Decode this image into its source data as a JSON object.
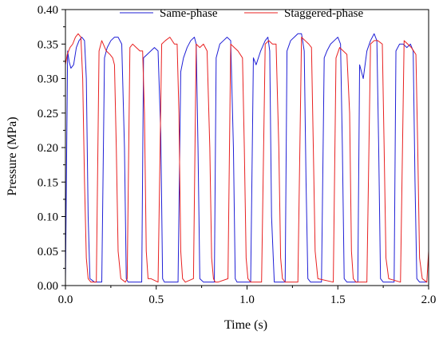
{
  "chart_data": {
    "type": "line",
    "title": "",
    "xlabel": "Time (s)",
    "ylabel": "Pressure (MPa)",
    "xlim": [
      0.0,
      2.0
    ],
    "ylim": [
      0.0,
      0.4
    ],
    "xticks": [
      0.0,
      0.5,
      1.0,
      1.5,
      2.0
    ],
    "xtick_labels": [
      "0.0",
      "0.5",
      "1.0",
      "1.5",
      "2.0"
    ],
    "yticks": [
      0.0,
      0.05,
      0.1,
      0.15,
      0.2,
      0.25,
      0.3,
      0.35,
      0.4
    ],
    "ytick_labels": [
      "0.00",
      "0.05",
      "0.10",
      "0.15",
      "0.20",
      "0.25",
      "0.30",
      "0.35",
      "0.40"
    ],
    "grid": false,
    "legend_position": "top",
    "series": [
      {
        "name": "Same-phase",
        "color": "#1f1fd6",
        "x": [
          0.0,
          0.012,
          0.02,
          0.03,
          0.045,
          0.06,
          0.075,
          0.09,
          0.105,
          0.115,
          0.125,
          0.135,
          0.145,
          0.16,
          0.2,
          0.215,
          0.23,
          0.25,
          0.27,
          0.29,
          0.31,
          0.325,
          0.335,
          0.345,
          0.36,
          0.42,
          0.43,
          0.45,
          0.47,
          0.49,
          0.51,
          0.525,
          0.535,
          0.545,
          0.56,
          0.62,
          0.635,
          0.65,
          0.67,
          0.69,
          0.71,
          0.72,
          0.73,
          0.74,
          0.76,
          0.82,
          0.83,
          0.85,
          0.87,
          0.89,
          0.91,
          0.925,
          0.935,
          0.945,
          0.96,
          1.02,
          1.035,
          1.05,
          1.075,
          1.1,
          1.115,
          1.125,
          1.135,
          1.15,
          1.21,
          1.22,
          1.24,
          1.26,
          1.28,
          1.3,
          1.315,
          1.325,
          1.335,
          1.35,
          1.41,
          1.425,
          1.44,
          1.46,
          1.48,
          1.5,
          1.515,
          1.525,
          1.535,
          1.55,
          1.61,
          1.62,
          1.64,
          1.66,
          1.68,
          1.7,
          1.715,
          1.725,
          1.735,
          1.75,
          1.81,
          1.82,
          1.84,
          1.86,
          1.88,
          1.9,
          1.915,
          1.925,
          1.935,
          1.95,
          1.99
        ],
        "values": [
          0.005,
          0.34,
          0.325,
          0.315,
          0.32,
          0.345,
          0.355,
          0.36,
          0.355,
          0.3,
          0.1,
          0.01,
          0.008,
          0.005,
          0.005,
          0.33,
          0.345,
          0.355,
          0.36,
          0.36,
          0.35,
          0.2,
          0.01,
          0.005,
          0.005,
          0.005,
          0.33,
          0.335,
          0.34,
          0.345,
          0.34,
          0.22,
          0.01,
          0.005,
          0.005,
          0.005,
          0.31,
          0.33,
          0.345,
          0.355,
          0.36,
          0.35,
          0.2,
          0.01,
          0.005,
          0.005,
          0.33,
          0.35,
          0.355,
          0.36,
          0.355,
          0.2,
          0.01,
          0.005,
          0.005,
          0.005,
          0.33,
          0.32,
          0.34,
          0.355,
          0.36,
          0.34,
          0.1,
          0.005,
          0.005,
          0.34,
          0.355,
          0.36,
          0.365,
          0.365,
          0.34,
          0.15,
          0.01,
          0.005,
          0.005,
          0.33,
          0.34,
          0.35,
          0.355,
          0.36,
          0.35,
          0.2,
          0.01,
          0.005,
          0.005,
          0.32,
          0.3,
          0.34,
          0.355,
          0.365,
          0.355,
          0.2,
          0.01,
          0.005,
          0.005,
          0.34,
          0.35,
          0.35,
          0.345,
          0.35,
          0.34,
          0.15,
          0.01,
          0.005,
          0.005
        ]
      },
      {
        "name": "Staggered-phase",
        "color": "#e82020",
        "x": [
          0.0,
          0.01,
          0.025,
          0.04,
          0.055,
          0.07,
          0.085,
          0.095,
          0.105,
          0.115,
          0.125,
          0.14,
          0.17,
          0.185,
          0.2,
          0.225,
          0.245,
          0.26,
          0.27,
          0.28,
          0.29,
          0.305,
          0.33,
          0.34,
          0.355,
          0.37,
          0.39,
          0.41,
          0.425,
          0.435,
          0.445,
          0.455,
          0.47,
          0.51,
          0.53,
          0.55,
          0.575,
          0.6,
          0.615,
          0.625,
          0.635,
          0.645,
          0.66,
          0.705,
          0.72,
          0.74,
          0.76,
          0.78,
          0.795,
          0.805,
          0.815,
          0.825,
          0.84,
          0.895,
          0.91,
          0.93,
          0.95,
          0.975,
          0.985,
          0.995,
          1.005,
          1.02,
          1.08,
          1.1,
          1.12,
          1.14,
          1.16,
          1.175,
          1.185,
          1.195,
          1.21,
          1.28,
          1.3,
          1.32,
          1.34,
          1.355,
          1.365,
          1.375,
          1.39,
          1.475,
          1.49,
          1.51,
          1.53,
          1.55,
          1.565,
          1.575,
          1.585,
          1.6,
          1.66,
          1.68,
          1.7,
          1.72,
          1.745,
          1.755,
          1.765,
          1.78,
          1.845,
          1.865,
          1.885,
          1.905,
          1.93,
          1.94,
          1.95,
          1.965,
          1.99,
          2.0
        ],
        "values": [
          0.32,
          0.335,
          0.345,
          0.35,
          0.36,
          0.365,
          0.36,
          0.3,
          0.15,
          0.04,
          0.01,
          0.005,
          0.005,
          0.34,
          0.355,
          0.34,
          0.335,
          0.33,
          0.32,
          0.2,
          0.05,
          0.01,
          0.005,
          0.01,
          0.345,
          0.35,
          0.345,
          0.34,
          0.34,
          0.25,
          0.05,
          0.01,
          0.01,
          0.005,
          0.35,
          0.355,
          0.36,
          0.35,
          0.35,
          0.25,
          0.05,
          0.01,
          0.005,
          0.01,
          0.35,
          0.345,
          0.35,
          0.34,
          0.2,
          0.04,
          0.01,
          0.005,
          0.005,
          0.01,
          0.35,
          0.345,
          0.34,
          0.33,
          0.2,
          0.04,
          0.01,
          0.005,
          0.005,
          0.35,
          0.355,
          0.35,
          0.35,
          0.2,
          0.04,
          0.01,
          0.005,
          0.005,
          0.36,
          0.355,
          0.35,
          0.345,
          0.2,
          0.05,
          0.01,
          0.005,
          0.33,
          0.345,
          0.34,
          0.335,
          0.25,
          0.05,
          0.01,
          0.005,
          0.005,
          0.35,
          0.355,
          0.355,
          0.35,
          0.2,
          0.04,
          0.01,
          0.005,
          0.355,
          0.35,
          0.345,
          0.335,
          0.2,
          0.04,
          0.01,
          0.005,
          0.05
        ]
      }
    ]
  }
}
